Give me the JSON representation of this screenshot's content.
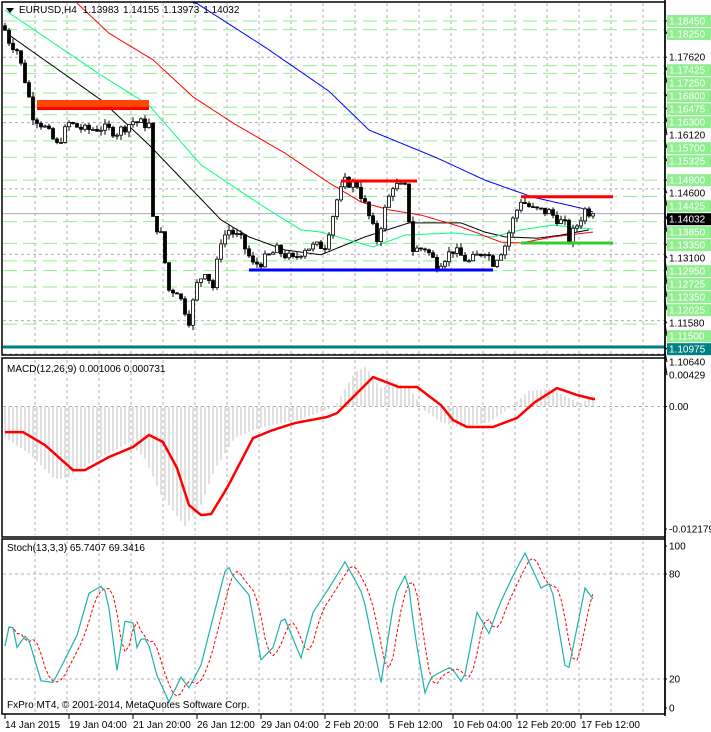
{
  "header": {
    "symbol_tf": "EURUSD,H4",
    "open": "1.13983",
    "high": "1.14155",
    "low": "1.13973",
    "close": "1.14032"
  },
  "footer": {
    "copyright": "FxPro MT4, © 2001-2014, MetaQuotes Software Corp."
  },
  "colors": {
    "bull": "#ffffff",
    "bear": "#000000",
    "level_label_bg": "#90ee90",
    "current_label_bg": "#000000",
    "teal_level": "#008080",
    "ma_fast": "#000000",
    "ma_green": "#00ff7f",
    "ma_red": "#ff0000",
    "ma_blue": "#0000ff",
    "macd_hist": "#c0c0c0",
    "macd_signal": "#ff0000",
    "stoch_main": "#20b2aa",
    "stoch_signal": "#ff0000"
  },
  "chart_data": [
    {
      "type": "candlestick",
      "title": "EURUSD,H4",
      "ylim": [
        1.1064,
        1.186
      ],
      "x_ticks": [
        {
          "bar": 0,
          "label": "14 Jan 2015"
        },
        {
          "bar": 16,
          "label": "19 Jan 04:00"
        },
        {
          "bar": 32,
          "label": "21 Jan 20:00"
        },
        {
          "bar": 48,
          "label": "26 Jan 12:00"
        },
        {
          "bar": 64,
          "label": "29 Jan 04:00"
        },
        {
          "bar": 80,
          "label": "2 Feb 20:00"
        },
        {
          "bar": 96,
          "label": "5 Feb 12:00"
        },
        {
          "bar": 112,
          "label": "10 Feb 04:00"
        },
        {
          "bar": 128,
          "label": "12 Feb 20:00"
        },
        {
          "bar": 144,
          "label": "17 Feb 12:00"
        }
      ],
      "bar_count": 148,
      "close_keypoints": [
        [
          0,
          1.1824
        ],
        [
          1,
          1.18
        ],
        [
          3,
          1.1779
        ],
        [
          5,
          1.171
        ],
        [
          7,
          1.1629
        ],
        [
          10,
          1.16
        ],
        [
          13,
          1.156
        ],
        [
          16,
          1.161
        ],
        [
          20,
          1.1595
        ],
        [
          24,
          1.16
        ],
        [
          28,
          1.159
        ],
        [
          32,
          1.1615
        ],
        [
          36,
          1.1607
        ],
        [
          37,
          1.1389
        ],
        [
          39,
          1.1354
        ],
        [
          41,
          1.1228
        ],
        [
          43,
          1.1228
        ],
        [
          45,
          1.1182
        ],
        [
          46,
          1.1159
        ],
        [
          48,
          1.124
        ],
        [
          50,
          1.1274
        ],
        [
          52,
          1.1235
        ],
        [
          54,
          1.1343
        ],
        [
          56,
          1.1366
        ],
        [
          59,
          1.1343
        ],
        [
          62,
          1.1286
        ],
        [
          64,
          1.1292
        ],
        [
          68,
          1.132
        ],
        [
          72,
          1.1297
        ],
        [
          75,
          1.1325
        ],
        [
          80,
          1.1331
        ],
        [
          83,
          1.1435
        ],
        [
          85,
          1.1476
        ],
        [
          88,
          1.1469
        ],
        [
          90,
          1.1423
        ],
        [
          93,
          1.1343
        ],
        [
          95,
          1.1412
        ],
        [
          97,
          1.1469
        ],
        [
          100,
          1.1462
        ],
        [
          102,
          1.132
        ],
        [
          105,
          1.1325
        ],
        [
          108,
          1.1286
        ],
        [
          112,
          1.132
        ],
        [
          116,
          1.1292
        ],
        [
          120,
          1.132
        ],
        [
          122,
          1.1292
        ],
        [
          125,
          1.1331
        ],
        [
          127,
          1.1389
        ],
        [
          129,
          1.1435
        ],
        [
          132,
          1.1412
        ],
        [
          136,
          1.1407
        ],
        [
          140,
          1.1377
        ],
        [
          141,
          1.1343
        ],
        [
          143,
          1.1377
        ],
        [
          145,
          1.1412
        ],
        [
          147,
          1.14032
        ]
      ],
      "moving_averages": [
        {
          "name": "ma_fast",
          "color": "#000000",
          "points": [
            [
              1,
              1.1813
            ],
            [
              24,
              1.1664
            ],
            [
              36,
              1.1561
            ],
            [
              54,
              1.1389
            ],
            [
              61,
              1.135
            ],
            [
              70,
              1.132
            ],
            [
              79,
              1.1309
            ],
            [
              90,
              1.135
            ],
            [
              101,
              1.1382
            ],
            [
              114,
              1.1382
            ],
            [
              120,
              1.1361
            ],
            [
              125,
              1.135
            ],
            [
              133,
              1.1347
            ],
            [
              139,
              1.1354
            ],
            [
              146,
              1.1366
            ]
          ]
        },
        {
          "name": "ma_green",
          "color": "#00ff7f",
          "points": [
            [
              0,
              1.187
            ],
            [
              24,
              1.1721
            ],
            [
              36,
              1.1652
            ],
            [
              49,
              1.1515
            ],
            [
              64,
              1.1423
            ],
            [
              74,
              1.1366
            ],
            [
              79,
              1.1361
            ],
            [
              92,
              1.1327
            ],
            [
              100,
              1.1354
            ],
            [
              112,
              1.1359
            ],
            [
              122,
              1.135
            ],
            [
              129,
              1.1366
            ],
            [
              137,
              1.1377
            ],
            [
              147,
              1.1368
            ]
          ]
        },
        {
          "name": "ma_red",
          "color": "#ff0000",
          "points": [
            [
              18,
              1.1886
            ],
            [
              26,
              1.1817
            ],
            [
              37,
              1.1756
            ],
            [
              47,
              1.1671
            ],
            [
              57,
              1.1611
            ],
            [
              70,
              1.1542
            ],
            [
              81,
              1.1474
            ],
            [
              89,
              1.143
            ],
            [
              96,
              1.1412
            ],
            [
              104,
              1.14
            ],
            [
              114,
              1.1373
            ],
            [
              124,
              1.1338
            ],
            [
              129,
              1.1336
            ],
            [
              137,
              1.135
            ],
            [
              147,
              1.1361
            ]
          ]
        },
        {
          "name": "ma_blue",
          "color": "#0000ff",
          "points": [
            [
              47,
              1.1891
            ],
            [
              65,
              1.1785
            ],
            [
              81,
              1.1684
            ],
            [
              91,
              1.1595
            ],
            [
              108,
              1.1531
            ],
            [
              120,
              1.148
            ],
            [
              132,
              1.1441
            ],
            [
              144,
              1.1416
            ],
            [
              147,
              1.1407
            ]
          ]
        }
      ],
      "drawn_lines": [
        {
          "name": "resistance-orange",
          "price": 1.165,
          "from_bar": 8,
          "to_bar": 36,
          "color": "#ff4500"
        },
        {
          "name": "resistance-red-1",
          "price": 1.1478,
          "from_bar": 84,
          "to_bar": 103,
          "color": "#ff0000"
        },
        {
          "name": "resistance-red-2",
          "price": 1.1442,
          "from_bar": 129,
          "to_bar": 152,
          "color": "#ff0000"
        },
        {
          "name": "support-green",
          "price": 1.1336,
          "from_bar": 129,
          "to_bar": 152,
          "color": "#33cc33"
        },
        {
          "name": "support-blue",
          "price": 1.1274,
          "from_bar": 61,
          "to_bar": 122,
          "color": "#0000ff"
        }
      ],
      "level_lines": [
        "1.18450",
        "1.18250",
        "1.17425",
        "1.17250",
        "1.16800",
        "1.16475",
        "1.16300",
        "1.15700",
        "1.15325",
        "1.14800",
        "1.14425",
        "1.13850",
        "1.13350",
        "1.12950",
        "1.12725",
        "1.12350",
        "1.12025",
        "1.11500"
      ],
      "teal_level": "1.10975",
      "grid_prices": [
        "1.17620",
        "1.16120",
        "1.14600",
        "1.13100",
        "1.11580",
        "1.10640"
      ],
      "current_price": "1.14032"
    },
    {
      "type": "macd",
      "title": "MACD(12,26,9) 0.001006 0.000731",
      "legend": "MACD(12,26,9) 0.001006 0.000731",
      "ylim": [
        -0.012179,
        0.00429
      ],
      "y_ticks": [
        "0.00429",
        "0.00",
        "-0.012179"
      ],
      "histogram_keypoints": [
        [
          0,
          -0.003
        ],
        [
          6,
          -0.0045
        ],
        [
          12.5,
          -0.007
        ],
        [
          16,
          -0.0068
        ],
        [
          21,
          -0.0055
        ],
        [
          26,
          -0.0045
        ],
        [
          31,
          -0.0035
        ],
        [
          35,
          -0.005
        ],
        [
          39,
          -0.0085
        ],
        [
          45,
          -0.0115
        ],
        [
          49,
          -0.0095
        ],
        [
          52.5,
          -0.006
        ],
        [
          57.5,
          -0.003
        ],
        [
          64,
          -0.002
        ],
        [
          74,
          -0.0012
        ],
        [
          82.5,
          0.0
        ],
        [
          87.5,
          0.0033
        ],
        [
          90,
          0.0038
        ],
        [
          94,
          0.0018
        ],
        [
          97.5,
          0.0023
        ],
        [
          101,
          0.0018
        ],
        [
          105,
          -0.0004
        ],
        [
          109,
          -0.0015
        ],
        [
          114,
          -0.002
        ],
        [
          121,
          -0.0015
        ],
        [
          126,
          -0.0002
        ],
        [
          131,
          0.0015
        ],
        [
          136,
          0.0017
        ],
        [
          140,
          0.001
        ],
        [
          144,
          0.0003
        ],
        [
          147,
          0.001006
        ]
      ],
      "signal_keypoints": [
        [
          0,
          -0.00246
        ],
        [
          4.5,
          -0.00246
        ],
        [
          10,
          -0.00371
        ],
        [
          17,
          -0.00612
        ],
        [
          20,
          -0.00612
        ],
        [
          26,
          -0.00486
        ],
        [
          32,
          -0.0039
        ],
        [
          36,
          -0.00274
        ],
        [
          39.5,
          -0.00342
        ],
        [
          43,
          -0.00592
        ],
        [
          46,
          -0.00949
        ],
        [
          49,
          -0.01045
        ],
        [
          51.5,
          -0.01036
        ],
        [
          55.5,
          -0.00785
        ],
        [
          62,
          -0.00304
        ],
        [
          67,
          -0.00226
        ],
        [
          72.5,
          -0.00159
        ],
        [
          80.5,
          -0.00101
        ],
        [
          83,
          -0.00063
        ],
        [
          92,
          0.00284
        ],
        [
          98.5,
          0.00188
        ],
        [
          103,
          0.00188
        ],
        [
          109,
          0.00014
        ],
        [
          112,
          -0.0013
        ],
        [
          115.5,
          -0.00197
        ],
        [
          122,
          -0.00197
        ],
        [
          128,
          -0.0011
        ],
        [
          132.5,
          0.00043
        ],
        [
          138,
          0.00178
        ],
        [
          143,
          0.00111
        ],
        [
          147,
          0.000731
        ]
      ]
    },
    {
      "type": "stochastic",
      "title": "Stoch(13,3,3) 65.7407 69.3416",
      "legend": "Stoch(13,3,3) 65.7407 69.3416",
      "ylim": [
        0,
        100
      ],
      "y_ticks": [
        "100",
        "80",
        "20",
        "0"
      ],
      "main_keypoints": [
        [
          0,
          39
        ],
        [
          1.5,
          55
        ],
        [
          3,
          38
        ],
        [
          5.5,
          46
        ],
        [
          9,
          19
        ],
        [
          12,
          18
        ],
        [
          14.5,
          29
        ],
        [
          18,
          45
        ],
        [
          21,
          69
        ],
        [
          24,
          73
        ],
        [
          25.5,
          69
        ],
        [
          28,
          25
        ],
        [
          30,
          53
        ],
        [
          32,
          52
        ],
        [
          33,
          38
        ],
        [
          34.5,
          45
        ],
        [
          36,
          39
        ],
        [
          38,
          22
        ],
        [
          41,
          7
        ],
        [
          44,
          21
        ],
        [
          46,
          15
        ],
        [
          49,
          28
        ],
        [
          52,
          55
        ],
        [
          55.5,
          86
        ],
        [
          57,
          79
        ],
        [
          61,
          68
        ],
        [
          64,
          31
        ],
        [
          67,
          38
        ],
        [
          69.5,
          57
        ],
        [
          74,
          32
        ],
        [
          77,
          58
        ],
        [
          81,
          72
        ],
        [
          85,
          87
        ],
        [
          89.5,
          68
        ],
        [
          94,
          18
        ],
        [
          97.5,
          68
        ],
        [
          100.5,
          81
        ],
        [
          102.5,
          45
        ],
        [
          105,
          12
        ],
        [
          106.5,
          21
        ],
        [
          111.5,
          27
        ],
        [
          114.5,
          17
        ],
        [
          118,
          58
        ],
        [
          121,
          46
        ],
        [
          123.5,
          62
        ],
        [
          127,
          79
        ],
        [
          130,
          92
        ],
        [
          134,
          72
        ],
        [
          136.5,
          75
        ],
        [
          140.5,
          21
        ],
        [
          145,
          72
        ],
        [
          147,
          65.74
        ]
      ],
      "signal_last": 69.3416
    }
  ]
}
